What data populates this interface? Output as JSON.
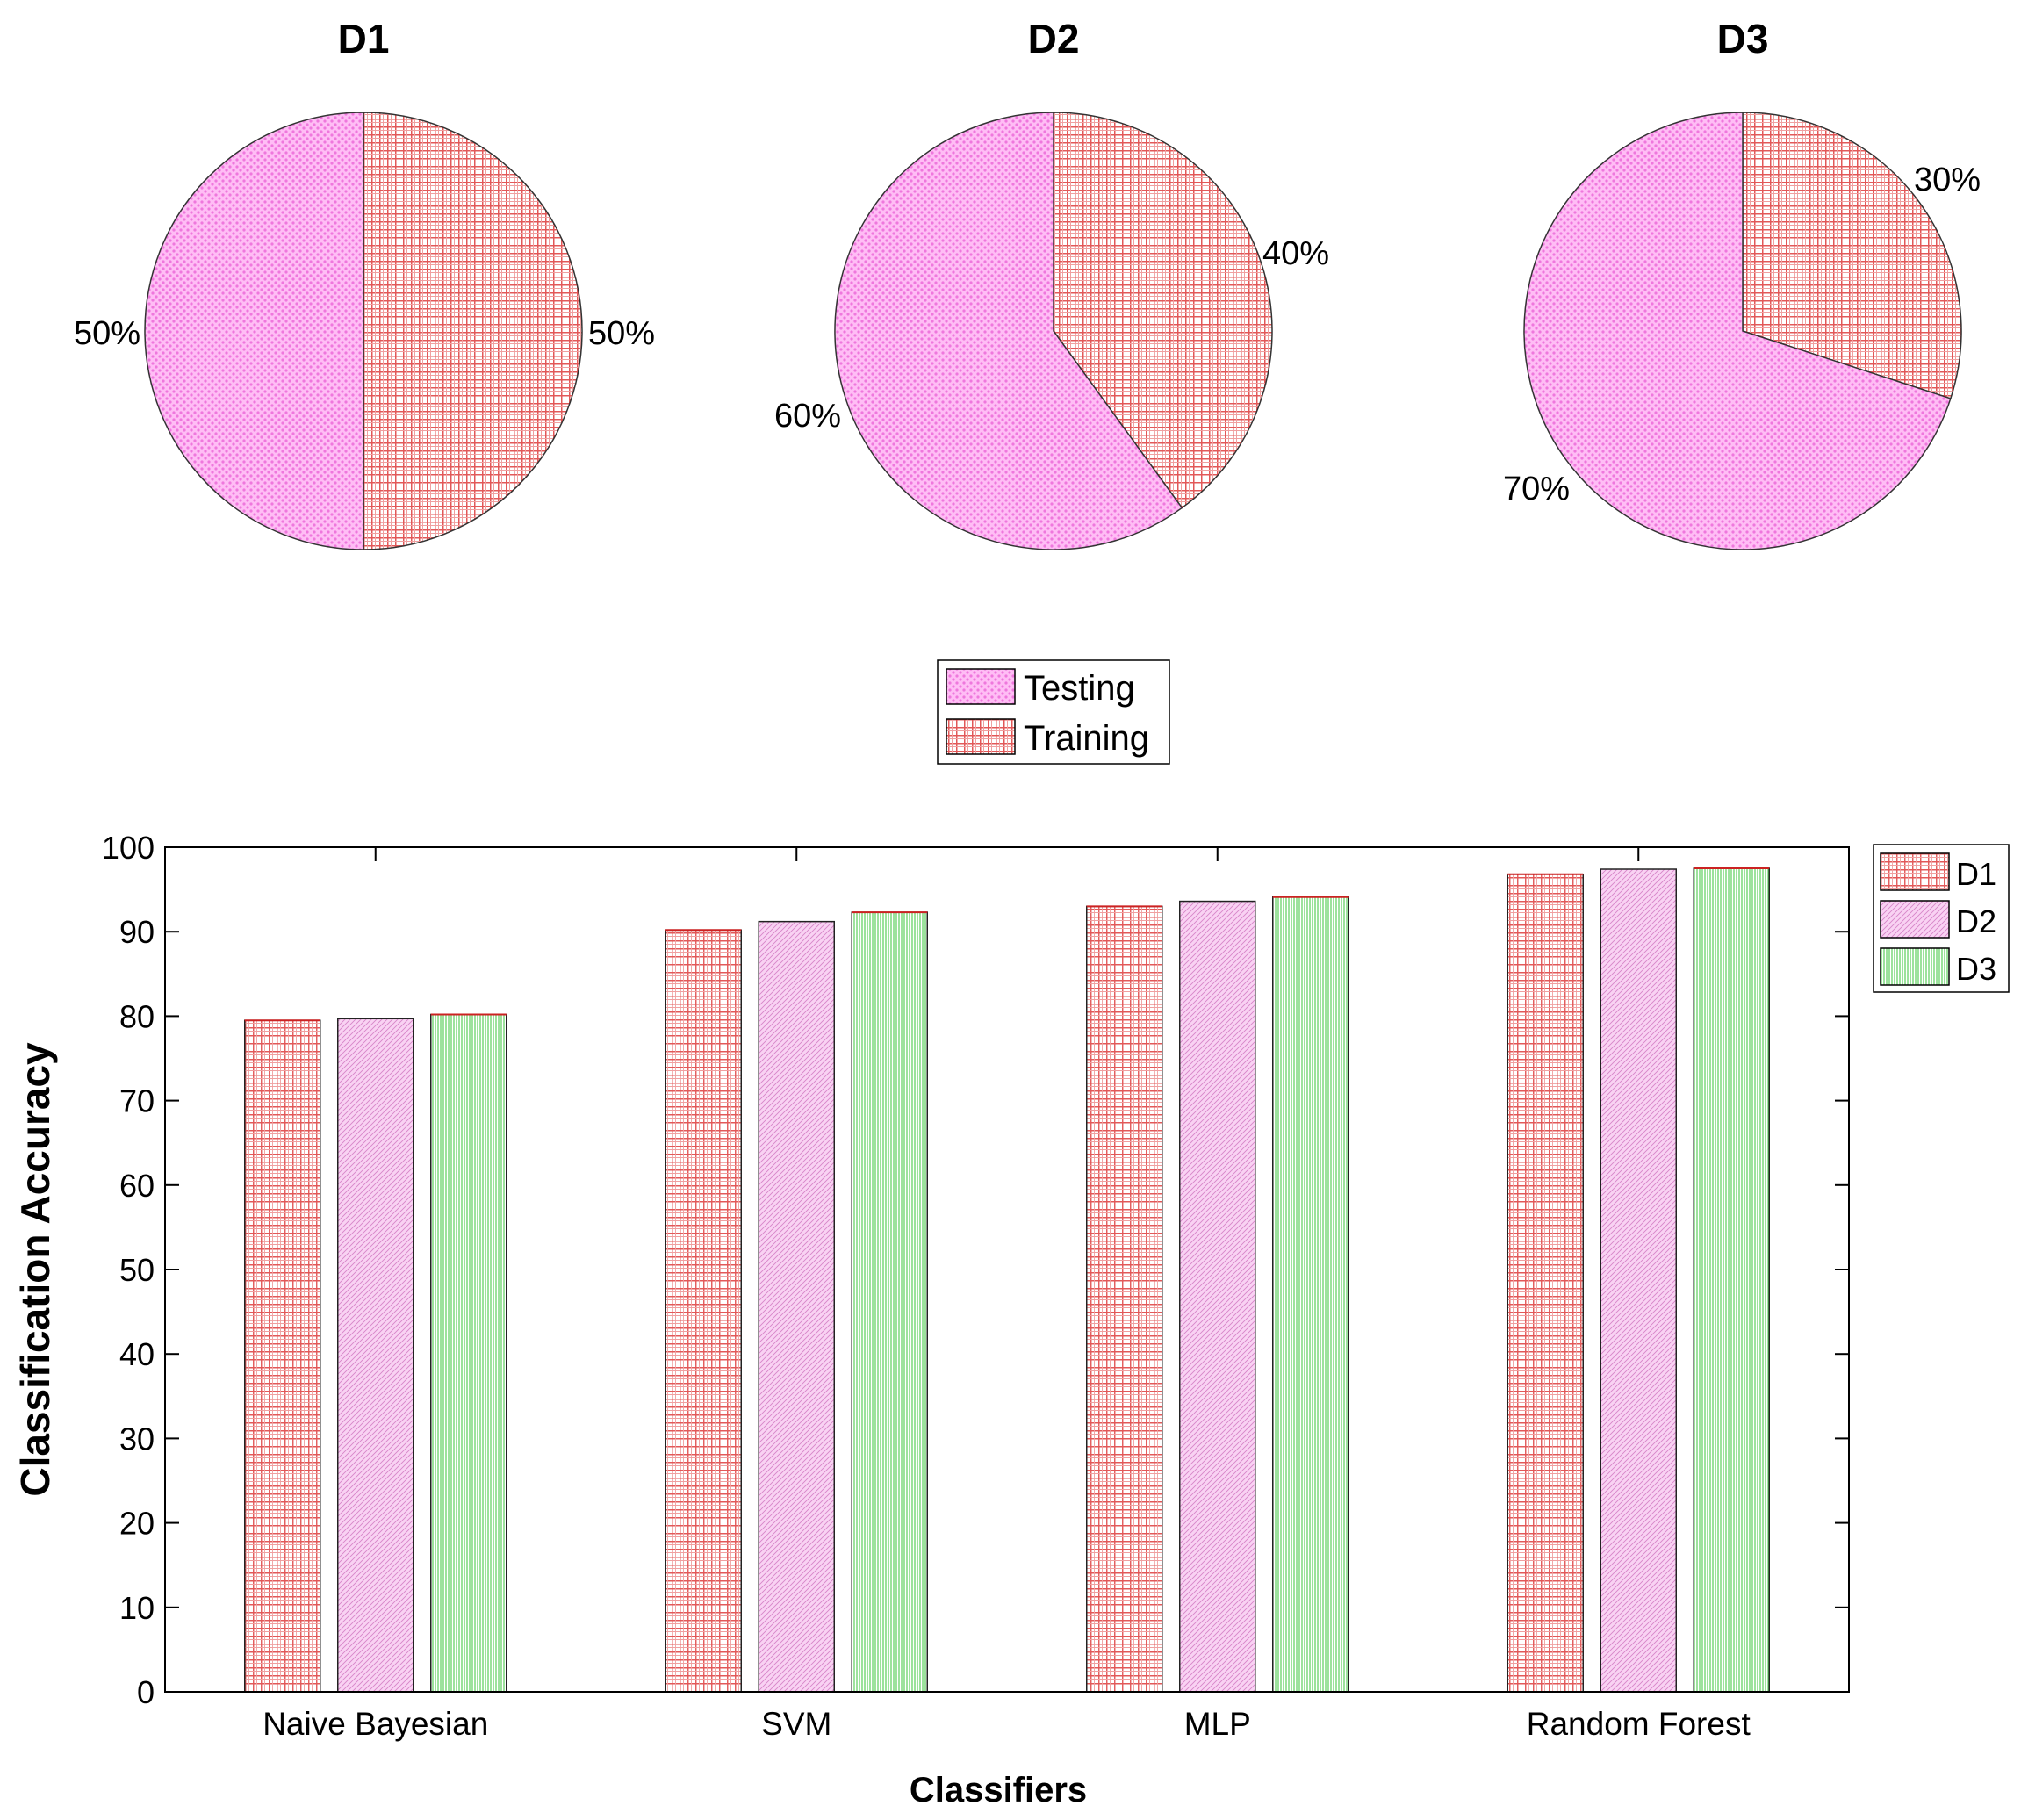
{
  "chart_data": [
    {
      "type": "pie",
      "title": "D1",
      "slices": [
        {
          "label": "Training",
          "value": 50,
          "text": "50%"
        },
        {
          "label": "Testing",
          "value": 50,
          "text": "50%"
        }
      ]
    },
    {
      "type": "pie",
      "title": "D2",
      "slices": [
        {
          "label": "Training",
          "value": 40,
          "text": "40%"
        },
        {
          "label": "Testing",
          "value": 60,
          "text": "60%"
        }
      ]
    },
    {
      "type": "pie",
      "title": "D3",
      "slices": [
        {
          "label": "Training",
          "value": 30,
          "text": "30%"
        },
        {
          "label": "Testing",
          "value": 70,
          "text": "70%"
        }
      ]
    },
    {
      "type": "bar",
      "title": "",
      "xlabel": "Classifiers",
      "ylabel": "Classification Accuracy",
      "ylim": [
        0,
        100
      ],
      "yticks": [
        "0",
        "10",
        "20",
        "30",
        "40",
        "50",
        "60",
        "70",
        "80",
        "90",
        "100"
      ],
      "categories": [
        "Naive Bayesian",
        "SVM",
        "MLP",
        "Random Forest"
      ],
      "series": [
        {
          "name": "D1",
          "values": [
            79.5,
            90.2,
            93.0,
            96.8
          ]
        },
        {
          "name": "D2",
          "values": [
            79.7,
            91.2,
            93.6,
            97.4
          ]
        },
        {
          "name": "D3",
          "values": [
            80.2,
            92.3,
            94.1,
            97.5
          ]
        }
      ],
      "legend_position": "outside-top-right"
    }
  ],
  "pie_legend": {
    "position": "center",
    "items": [
      "Testing",
      "Training"
    ]
  },
  "colors": {
    "testing": "#ffbdf5",
    "testing_pattern": "#ef77dd",
    "training": "#ffffff",
    "training_pattern": "#e25858",
    "d1": "#ffffff",
    "d1_pattern": "#e25858",
    "d2": "#f9d2f3",
    "d2_pattern": "#d785c9",
    "d3": "#ffffff",
    "d3_pattern": "#5ccf5c"
  }
}
